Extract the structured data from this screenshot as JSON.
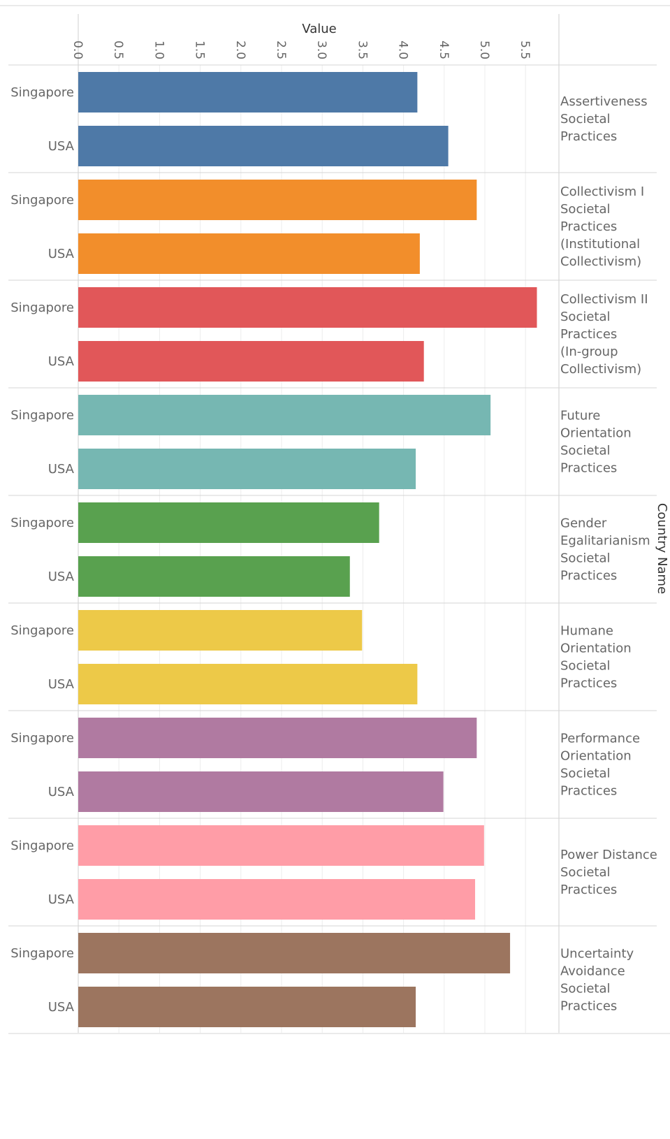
{
  "chart_data": {
    "type": "bar",
    "orientation": "horizontal",
    "title": "",
    "xlabel": "Value",
    "ylabel": "Country Name",
    "xlim": [
      0,
      5.95
    ],
    "xticks": [
      "0.0",
      "0.5",
      "1.0",
      "1.5",
      "2.0",
      "2.5",
      "3.0",
      "3.5",
      "4.0",
      "4.5",
      "5.0",
      "5.5"
    ],
    "grid": true,
    "legend": "none",
    "groups": [
      {
        "name": [
          "Assertiveness",
          "Societal",
          "Practices"
        ],
        "color": "#4e79a7",
        "bars": [
          {
            "country": "Singapore",
            "value": 4.17
          },
          {
            "country": "USA",
            "value": 4.55
          }
        ]
      },
      {
        "name": [
          "Collectivism I",
          "Societal",
          "Practices",
          "(Institutional",
          "Collectivism)"
        ],
        "color": "#f28e2b",
        "bars": [
          {
            "country": "Singapore",
            "value": 4.9
          },
          {
            "country": "USA",
            "value": 4.2
          }
        ]
      },
      {
        "name": [
          "Collectivism II",
          "Societal",
          "Practices",
          "(In-group",
          "Collectivism)"
        ],
        "color": "#e15759",
        "bars": [
          {
            "country": "Singapore",
            "value": 5.64
          },
          {
            "country": "USA",
            "value": 4.25
          }
        ]
      },
      {
        "name": [
          "Future",
          "Orientation",
          "Societal",
          "Practices"
        ],
        "color": "#76b7b2",
        "bars": [
          {
            "country": "Singapore",
            "value": 5.07
          },
          {
            "country": "USA",
            "value": 4.15
          }
        ]
      },
      {
        "name": [
          "Gender",
          "Egalitarianism",
          "Societal",
          "Practices"
        ],
        "color": "#59a14f",
        "bars": [
          {
            "country": "Singapore",
            "value": 3.7
          },
          {
            "country": "USA",
            "value": 3.34
          }
        ]
      },
      {
        "name": [
          "Humane",
          "Orientation",
          "Societal",
          "Practices"
        ],
        "color": "#edc948",
        "bars": [
          {
            "country": "Singapore",
            "value": 3.49
          },
          {
            "country": "USA",
            "value": 4.17
          }
        ]
      },
      {
        "name": [
          "Performance",
          "Orientation",
          "Societal",
          "Practices"
        ],
        "color": "#b07aa1",
        "bars": [
          {
            "country": "Singapore",
            "value": 4.9
          },
          {
            "country": "USA",
            "value": 4.49
          }
        ]
      },
      {
        "name": [
          "Power Distance",
          "Societal",
          "Practices"
        ],
        "color": "#ff9da7",
        "bars": [
          {
            "country": "Singapore",
            "value": 4.99
          },
          {
            "country": "USA",
            "value": 4.88
          }
        ]
      },
      {
        "name": [
          "Uncertainty",
          "Avoidance",
          "Societal",
          "Practices"
        ],
        "color": "#9c755f",
        "bars": [
          {
            "country": "Singapore",
            "value": 5.31
          },
          {
            "country": "USA",
            "value": 4.15
          }
        ]
      }
    ]
  }
}
